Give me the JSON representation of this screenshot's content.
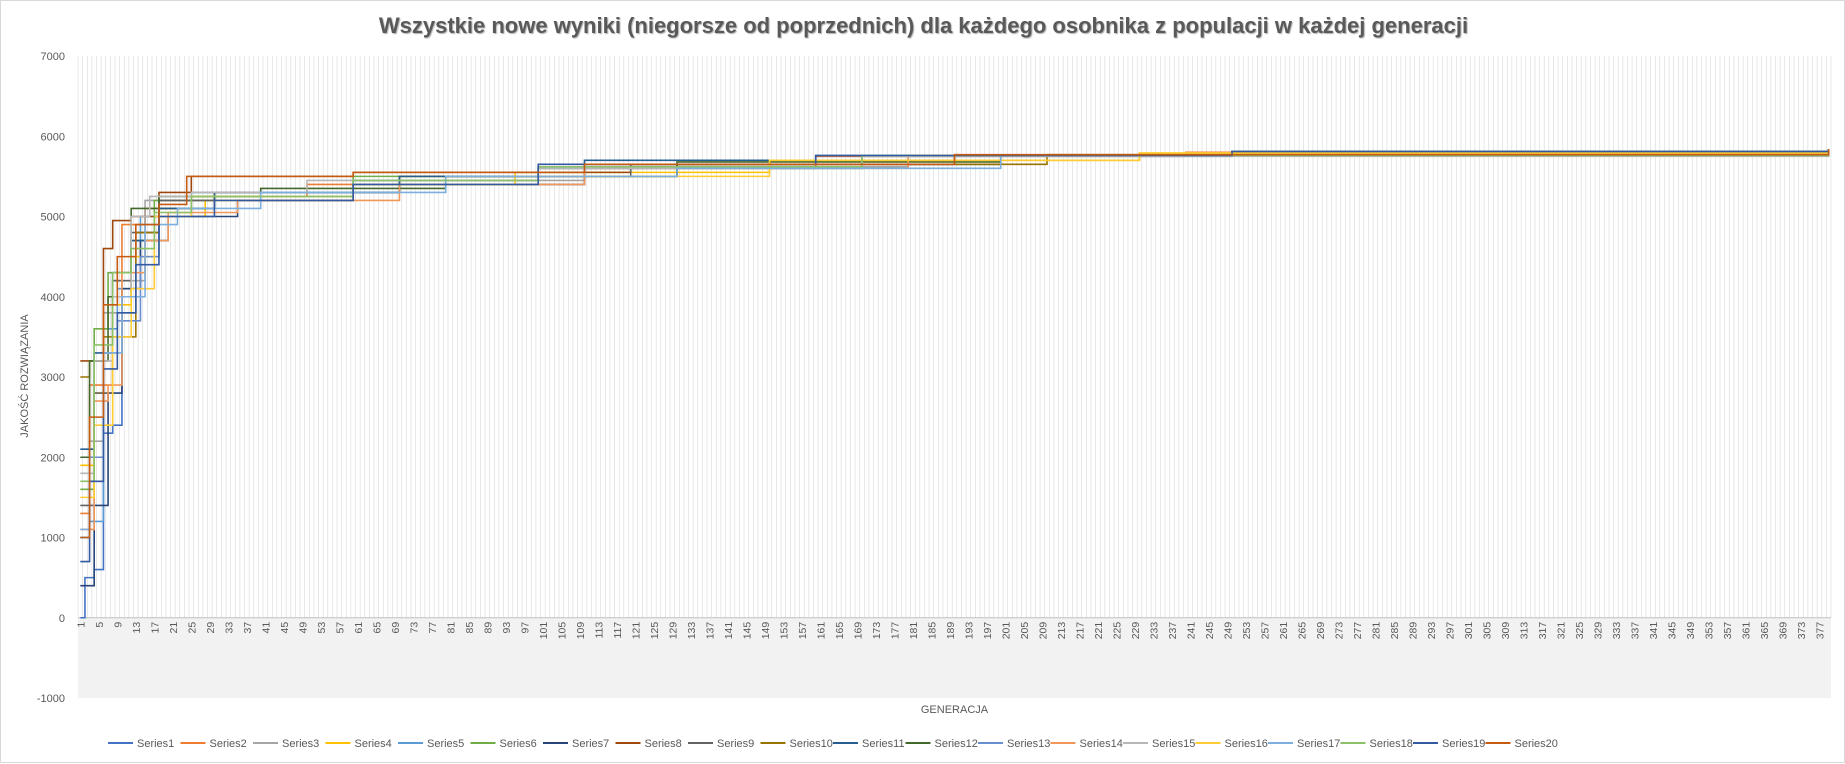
{
  "chart_data": {
    "type": "line",
    "title": "Wszystkie nowe  wyniki (niegorsze od poprzednich) dla każdego osobnika z populacji  w każdej generacji",
    "xlabel": "GENERACJA",
    "ylabel": "JAKOŚĆ ROZWIĄZANIA",
    "ylim": [
      -1000,
      7000
    ],
    "yticks": [
      -1000,
      0,
      1000,
      2000,
      3000,
      4000,
      5000,
      6000,
      7000
    ],
    "xlim": [
      1,
      379
    ],
    "xtick_labels": [
      "1",
      "5",
      "9",
      "13",
      "17",
      "21",
      "25",
      "29",
      "33",
      "37",
      "41",
      "45",
      "49",
      "53",
      "57",
      "61",
      "65",
      "69",
      "73",
      "77",
      "81",
      "85",
      "89",
      "93",
      "97",
      "101",
      "105",
      "109",
      "113",
      "117",
      "121",
      "125",
      "129",
      "133",
      "137",
      "141",
      "145",
      "149",
      "153",
      "157",
      "161",
      "165",
      "169",
      "173",
      "177",
      "181",
      "185",
      "189",
      "193",
      "197",
      "201",
      "205",
      "209",
      "213",
      "217",
      "221",
      "225",
      "229",
      "233",
      "237",
      "241",
      "245",
      "249",
      "253",
      "257",
      "261",
      "265",
      "269",
      "273",
      "277",
      "281",
      "285",
      "289",
      "293",
      "297",
      "301",
      "305",
      "309",
      "313",
      "317",
      "321",
      "325",
      "329",
      "333",
      "337",
      "341",
      "345",
      "349",
      "353",
      "357",
      "361",
      "365",
      "369",
      "373",
      "377"
    ],
    "grid": "vertical",
    "legend": "bottom",
    "series": [
      {
        "name": "Series1",
        "color": "#4472C4",
        "points": [
          [
            1,
            0
          ],
          [
            2,
            500
          ],
          [
            4,
            600
          ],
          [
            6,
            2300
          ],
          [
            8,
            2400
          ],
          [
            10,
            3800
          ],
          [
            13,
            4800
          ],
          [
            18,
            5200
          ],
          [
            30,
            5300
          ],
          [
            60,
            5450
          ],
          [
            100,
            5600
          ],
          [
            160,
            5750
          ],
          [
            250,
            5810
          ],
          [
            379,
            5840
          ]
        ]
      },
      {
        "name": "Series2",
        "color": "#ED7D31",
        "points": [
          [
            1,
            1300
          ],
          [
            3,
            2900
          ],
          [
            6,
            2900
          ],
          [
            8,
            4200
          ],
          [
            10,
            4900
          ],
          [
            15,
            5100
          ],
          [
            25,
            5250
          ],
          [
            50,
            5400
          ],
          [
            100,
            5620
          ],
          [
            160,
            5750
          ],
          [
            240,
            5800
          ],
          [
            379,
            5840
          ]
        ]
      },
      {
        "name": "Series3",
        "color": "#A5A5A5",
        "points": [
          [
            1,
            1000
          ],
          [
            3,
            2200
          ],
          [
            6,
            3800
          ],
          [
            10,
            4200
          ],
          [
            15,
            5200
          ],
          [
            25,
            5300
          ],
          [
            60,
            5450
          ],
          [
            110,
            5620
          ],
          [
            180,
            5760
          ],
          [
            260,
            5810
          ],
          [
            379,
            5840
          ]
        ]
      },
      {
        "name": "Series4",
        "color": "#FFC000",
        "points": [
          [
            1,
            1900
          ],
          [
            4,
            2800
          ],
          [
            8,
            3900
          ],
          [
            12,
            4500
          ],
          [
            18,
            5000
          ],
          [
            28,
            5200
          ],
          [
            60,
            5400
          ],
          [
            95,
            5550
          ],
          [
            150,
            5700
          ],
          [
            230,
            5790
          ],
          [
            379,
            5840
          ]
        ]
      },
      {
        "name": "Series5",
        "color": "#5B9BD5",
        "points": [
          [
            1,
            1000
          ],
          [
            3,
            1200
          ],
          [
            6,
            3600
          ],
          [
            9,
            4100
          ],
          [
            14,
            5000
          ],
          [
            25,
            5250
          ],
          [
            60,
            5450
          ],
          [
            95,
            5500
          ],
          [
            130,
            5650
          ],
          [
            200,
            5760
          ],
          [
            379,
            5840
          ]
        ]
      },
      {
        "name": "Series6",
        "color": "#70AD47",
        "points": [
          [
            1,
            1600
          ],
          [
            4,
            3600
          ],
          [
            7,
            4300
          ],
          [
            12,
            4700
          ],
          [
            17,
            5200
          ],
          [
            30,
            5300
          ],
          [
            60,
            5500
          ],
          [
            100,
            5600
          ],
          [
            170,
            5760
          ],
          [
            250,
            5810
          ],
          [
            379,
            5840
          ]
        ]
      },
      {
        "name": "Series7",
        "color": "#264478",
        "points": [
          [
            1,
            400
          ],
          [
            4,
            1400
          ],
          [
            7,
            2800
          ],
          [
            10,
            4100
          ],
          [
            14,
            4700
          ],
          [
            20,
            5000
          ],
          [
            35,
            5200
          ],
          [
            60,
            5400
          ],
          [
            110,
            5650
          ],
          [
            160,
            5760
          ],
          [
            250,
            5810
          ],
          [
            379,
            5840
          ]
        ]
      },
      {
        "name": "Series8",
        "color": "#9E480E",
        "points": [
          [
            1,
            3200
          ],
          [
            3,
            3200
          ],
          [
            6,
            4600
          ],
          [
            8,
            4950
          ],
          [
            12,
            5000
          ],
          [
            18,
            5300
          ],
          [
            25,
            5500
          ],
          [
            60,
            5550
          ],
          [
            120,
            5650
          ],
          [
            200,
            5760
          ],
          [
            379,
            5840
          ]
        ]
      },
      {
        "name": "Series9",
        "color": "#636363",
        "points": [
          [
            1,
            1400
          ],
          [
            4,
            2800
          ],
          [
            8,
            4200
          ],
          [
            12,
            4800
          ],
          [
            18,
            5200
          ],
          [
            30,
            5300
          ],
          [
            70,
            5500
          ],
          [
            120,
            5650
          ],
          [
            190,
            5760
          ],
          [
            379,
            5840
          ]
        ]
      },
      {
        "name": "Series10",
        "color": "#997300",
        "points": [
          [
            1,
            3000
          ],
          [
            3,
            3200
          ],
          [
            6,
            3500
          ],
          [
            10,
            3500
          ],
          [
            13,
            4800
          ],
          [
            18,
            5100
          ],
          [
            30,
            5300
          ],
          [
            70,
            5500
          ],
          [
            130,
            5650
          ],
          [
            210,
            5770
          ],
          [
            379,
            5840
          ]
        ]
      },
      {
        "name": "Series11",
        "color": "#255E91",
        "points": [
          [
            1,
            2100
          ],
          [
            4,
            3300
          ],
          [
            8,
            4300
          ],
          [
            12,
            4700
          ],
          [
            18,
            5100
          ],
          [
            30,
            5300
          ],
          [
            70,
            5500
          ],
          [
            110,
            5700
          ],
          [
            180,
            5760
          ],
          [
            379,
            5840
          ]
        ]
      },
      {
        "name": "Series12",
        "color": "#43682B",
        "points": [
          [
            1,
            2000
          ],
          [
            3,
            3200
          ],
          [
            7,
            4000
          ],
          [
            12,
            5100
          ],
          [
            18,
            5250
          ],
          [
            40,
            5350
          ],
          [
            80,
            5500
          ],
          [
            130,
            5680
          ],
          [
            200,
            5760
          ],
          [
            379,
            5840
          ]
        ]
      },
      {
        "name": "Series13",
        "color": "#698ED0",
        "points": [
          [
            1,
            1000
          ],
          [
            3,
            2000
          ],
          [
            6,
            3300
          ],
          [
            9,
            3700
          ],
          [
            14,
            4500
          ],
          [
            18,
            5000
          ],
          [
            25,
            5300
          ],
          [
            60,
            5450
          ],
          [
            100,
            5600
          ],
          [
            170,
            5760
          ],
          [
            379,
            5840
          ]
        ]
      },
      {
        "name": "Series14",
        "color": "#F1975A",
        "points": [
          [
            1,
            1100
          ],
          [
            4,
            2700
          ],
          [
            7,
            2900
          ],
          [
            10,
            4300
          ],
          [
            15,
            4700
          ],
          [
            20,
            5050
          ],
          [
            35,
            5200
          ],
          [
            70,
            5400
          ],
          [
            110,
            5600
          ],
          [
            180,
            5760
          ],
          [
            379,
            5840
          ]
        ]
      },
      {
        "name": "Series15",
        "color": "#B7B7B7",
        "points": [
          [
            1,
            1800
          ],
          [
            4,
            3200
          ],
          [
            8,
            4000
          ],
          [
            12,
            5000
          ],
          [
            16,
            5250
          ],
          [
            25,
            5300
          ],
          [
            50,
            5450
          ],
          [
            100,
            5600
          ],
          [
            170,
            5750
          ],
          [
            379,
            5840
          ]
        ]
      },
      {
        "name": "Series16",
        "color": "#FFCD33",
        "points": [
          [
            1,
            1500
          ],
          [
            4,
            2400
          ],
          [
            8,
            3500
          ],
          [
            12,
            4100
          ],
          [
            17,
            5000
          ],
          [
            25,
            5250
          ],
          [
            60,
            5400
          ],
          [
            95,
            5500
          ],
          [
            150,
            5700
          ],
          [
            230,
            5790
          ],
          [
            379,
            5840
          ]
        ]
      },
      {
        "name": "Series17",
        "color": "#7CAFDD",
        "points": [
          [
            1,
            1100
          ],
          [
            3,
            1700
          ],
          [
            6,
            3300
          ],
          [
            10,
            4000
          ],
          [
            15,
            4900
          ],
          [
            22,
            5100
          ],
          [
            40,
            5300
          ],
          [
            80,
            5500
          ],
          [
            130,
            5600
          ],
          [
            200,
            5760
          ],
          [
            379,
            5840
          ]
        ]
      },
      {
        "name": "Series18",
        "color": "#8CC168",
        "points": [
          [
            1,
            1700
          ],
          [
            4,
            3400
          ],
          [
            8,
            4300
          ],
          [
            12,
            4600
          ],
          [
            17,
            5050
          ],
          [
            25,
            5250
          ],
          [
            60,
            5450
          ],
          [
            100,
            5620
          ],
          [
            170,
            5760
          ],
          [
            379,
            5840
          ]
        ]
      },
      {
        "name": "Series19",
        "color": "#335AA1",
        "points": [
          [
            1,
            700
          ],
          [
            3,
            1700
          ],
          [
            6,
            3100
          ],
          [
            9,
            3800
          ],
          [
            13,
            4400
          ],
          [
            18,
            5000
          ],
          [
            30,
            5200
          ],
          [
            60,
            5400
          ],
          [
            100,
            5650
          ],
          [
            160,
            5760
          ],
          [
            250,
            5810
          ],
          [
            379,
            5840
          ]
        ]
      },
      {
        "name": "Series20",
        "color": "#C55A11",
        "points": [
          [
            1,
            1000
          ],
          [
            3,
            2500
          ],
          [
            6,
            3900
          ],
          [
            9,
            4500
          ],
          [
            13,
            4900
          ],
          [
            18,
            5150
          ],
          [
            24,
            5500
          ],
          [
            60,
            5550
          ],
          [
            110,
            5650
          ],
          [
            190,
            5770
          ],
          [
            379,
            5840
          ]
        ]
      }
    ]
  }
}
